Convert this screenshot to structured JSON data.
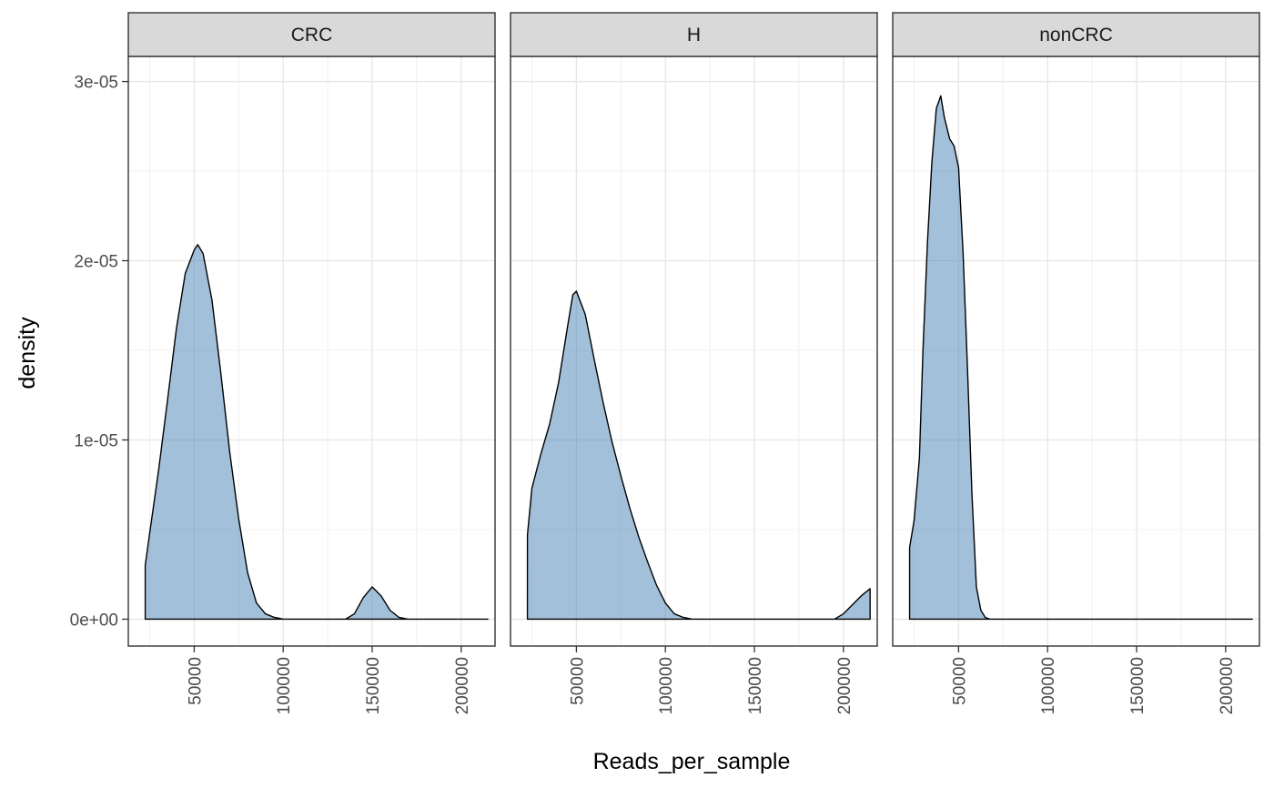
{
  "chart_data": {
    "type": "area",
    "subtype": "faceted density plot",
    "xlabel": "Reads_per_sample",
    "ylabel": "density",
    "xlim": [
      13000,
      219000
    ],
    "ylim": [
      -1.5e-06,
      3.14e-05
    ],
    "x_ticks": [
      50000,
      100000,
      150000,
      200000
    ],
    "x_tick_labels": [
      "50000",
      "100000",
      "150000",
      "200000"
    ],
    "y_ticks": [
      0,
      1e-05,
      2e-05,
      3e-05
    ],
    "y_tick_labels": [
      "0e+00",
      "1e-05",
      "2e-05",
      "3e-05"
    ],
    "grid": true,
    "legend": "none",
    "fill_color": "#4682b4",
    "fill_opacity": 0.5,
    "line_color": "#000000",
    "strip_fill": "#d9d9d9",
    "facets": [
      {
        "label": "CRC",
        "x": [
          22500,
          25000,
          30000,
          35000,
          40000,
          45000,
          50000,
          52000,
          55000,
          60000,
          65000,
          70000,
          75000,
          80000,
          85000,
          90000,
          95000,
          100000,
          105000,
          110000,
          120000,
          130000,
          135000,
          140000,
          145000,
          150000,
          155000,
          160000,
          165000,
          170000,
          175000,
          180000,
          200000,
          215000
        ],
        "values": [
          3e-06,
          4.8e-06,
          8.3e-06,
          1.22e-05,
          1.62e-05,
          1.93e-05,
          2.06e-05,
          2.09e-05,
          2.04e-05,
          1.78e-05,
          1.37e-05,
          9.3e-06,
          5.6e-06,
          2.6e-06,
          9e-07,
          3e-07,
          1e-07,
          0,
          0,
          0,
          0,
          0,
          0,
          3e-07,
          1.2e-06,
          1.8e-06,
          1.3e-06,
          5e-07,
          1e-07,
          0,
          0,
          0,
          0,
          0
        ]
      },
      {
        "label": "H",
        "x": [
          22500,
          22510,
          25000,
          30000,
          35000,
          40000,
          45000,
          48000,
          50000,
          55000,
          60000,
          65000,
          70000,
          75000,
          80000,
          85000,
          90000,
          95000,
          100000,
          105000,
          110000,
          115000,
          120000,
          140000,
          160000,
          180000,
          195000,
          200000,
          205000,
          210000,
          215000
        ],
        "values": [
          0,
          4.7e-06,
          7.3e-06,
          9.2e-06,
          1.09e-05,
          1.32e-05,
          1.63e-05,
          1.81e-05,
          1.83e-05,
          1.7e-05,
          1.45e-05,
          1.21e-05,
          9.9e-06,
          8e-06,
          6.2e-06,
          4.6e-06,
          3.2e-06,
          1.9e-06,
          9e-07,
          3e-07,
          1e-07,
          0,
          0,
          0,
          0,
          0,
          0,
          3e-07,
          8e-07,
          1.3e-06,
          1.7e-06
        ]
      },
      {
        "label": "nonCRC",
        "x": [
          22500,
          25000,
          28000,
          30000,
          32500,
          35000,
          37500,
          40000,
          42000,
          45000,
          47500,
          50000,
          52500,
          55000,
          57500,
          60000,
          62500,
          65000,
          67500,
          70000,
          72500,
          75000,
          80000,
          100000,
          150000,
          215000
        ],
        "values": [
          4e-06,
          5.5e-06,
          9e-06,
          1.5e-05,
          2.1e-05,
          2.55e-05,
          2.85e-05,
          2.92e-05,
          2.8e-05,
          2.68e-05,
          2.64e-05,
          2.52e-05,
          2.05e-05,
          1.4e-05,
          7e-06,
          1.8e-06,
          5e-07,
          1e-07,
          0,
          0,
          0,
          0,
          0,
          0,
          0,
          0
        ]
      }
    ]
  }
}
